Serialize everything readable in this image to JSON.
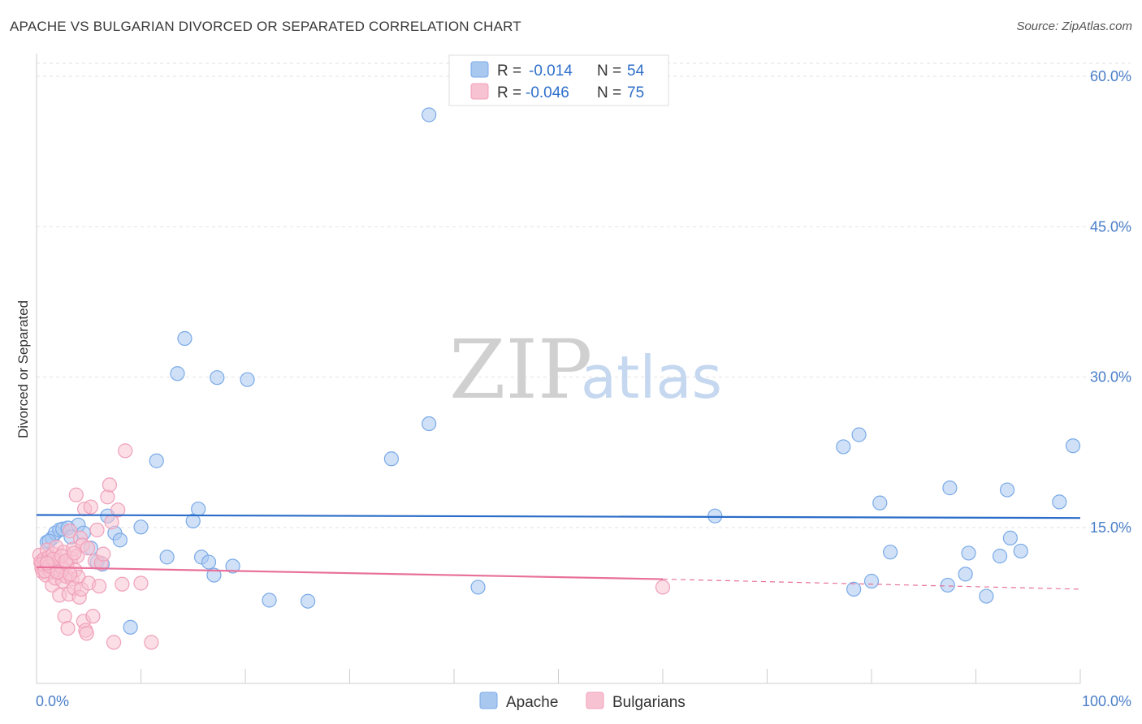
{
  "title": "APACHE VS BULGARIAN DIVORCED OR SEPARATED CORRELATION CHART",
  "source": "Source: ZipAtlas.com",
  "watermark": {
    "zip": "ZIP",
    "atlas": "atlas"
  },
  "chart_data": {
    "type": "scatter",
    "xlabel": "",
    "ylabel": "Divorced or Separated",
    "xlim": [
      0,
      100
    ],
    "ylim": [
      0,
      60
    ],
    "x_tick_labels": [
      {
        "value": 0,
        "label": "0.0%"
      },
      {
        "value": 100,
        "label": "100.0%"
      }
    ],
    "y_tick_labels": [
      {
        "value": 15,
        "label": "15.0%"
      },
      {
        "value": 30,
        "label": "30.0%"
      },
      {
        "value": 45,
        "label": "45.0%"
      },
      {
        "value": 60,
        "label": "60.0%"
      }
    ],
    "legend": {
      "r_label": "R =",
      "n_label": "N =",
      "entries": [
        {
          "series": "Apache",
          "r": "-0.014",
          "n": "54"
        },
        {
          "series": "Bulgarians",
          "r": "-0.046",
          "n": "75"
        }
      ]
    },
    "series": [
      {
        "name": "Apache",
        "color": "#7aaae8",
        "fill": "#a9c8f0",
        "line_color": "#2a6cc8",
        "trend": {
          "x0": 0,
          "y0": 16.5,
          "x1": 100,
          "y1": 16.2
        },
        "points": [
          [
            1,
            13.8
          ],
          [
            1.5,
            14.2
          ],
          [
            1.8,
            14.7
          ],
          [
            2.2,
            15
          ],
          [
            2.5,
            15.1
          ],
          [
            3,
            15.2
          ],
          [
            3.3,
            14.3
          ],
          [
            4,
            15.5
          ],
          [
            4.5,
            14.7
          ],
          [
            5.2,
            13.2
          ],
          [
            5.8,
            11.8
          ],
          [
            6.3,
            11.6
          ],
          [
            6.8,
            16.4
          ],
          [
            7.5,
            14.7
          ],
          [
            8,
            14
          ],
          [
            9,
            5.3
          ],
          [
            10,
            15.3
          ],
          [
            11.5,
            21.9
          ],
          [
            12.5,
            12.3
          ],
          [
            13.5,
            30.6
          ],
          [
            14.2,
            34.1
          ],
          [
            15,
            15.9
          ],
          [
            15.5,
            17.1
          ],
          [
            15.8,
            12.3
          ],
          [
            16.5,
            11.8
          ],
          [
            17,
            10.5
          ],
          [
            17.3,
            30.2
          ],
          [
            18.8,
            11.4
          ],
          [
            20.2,
            30
          ],
          [
            22.3,
            8
          ],
          [
            26,
            7.9
          ],
          [
            34,
            22.1
          ],
          [
            37.6,
            56.4
          ],
          [
            37.6,
            25.6
          ],
          [
            42.3,
            9.3
          ],
          [
            65,
            16.4
          ],
          [
            77.3,
            23.3
          ],
          [
            78.3,
            9.1
          ],
          [
            78.8,
            24.5
          ],
          [
            80,
            9.9
          ],
          [
            80.8,
            17.7
          ],
          [
            81.8,
            12.8
          ],
          [
            87.3,
            9.5
          ],
          [
            87.5,
            19.2
          ],
          [
            89,
            10.6
          ],
          [
            89.3,
            12.7
          ],
          [
            91,
            8.4
          ],
          [
            92.3,
            12.4
          ],
          [
            93,
            19
          ],
          [
            93.3,
            14.2
          ],
          [
            94.3,
            12.9
          ],
          [
            98,
            17.8
          ],
          [
            99.3,
            23.4
          ],
          [
            1.2,
            13.9
          ]
        ]
      },
      {
        "name": "Bulgarians",
        "color": "#f0a0ba",
        "fill": "#f7c2d2",
        "line_color": "#e8709a",
        "trend": {
          "x0": 0,
          "y0": 11.3,
          "x1": 60,
          "y1": 10.1
        },
        "trend_dashed": {
          "x0": 60,
          "y0": 10.1,
          "x1": 100,
          "y1": 9.1
        },
        "points": [
          [
            0.3,
            12.5
          ],
          [
            0.4,
            11.8
          ],
          [
            0.5,
            11.2
          ],
          [
            0.6,
            10.8
          ],
          [
            0.7,
            12.1
          ],
          [
            0.8,
            11.5
          ],
          [
            0.9,
            10.5
          ],
          [
            1,
            13
          ],
          [
            1.1,
            11.9
          ],
          [
            1.2,
            12.3
          ],
          [
            1.3,
            10.9
          ],
          [
            1.4,
            11.4
          ],
          [
            1.5,
            9.5
          ],
          [
            1.6,
            12.6
          ],
          [
            1.7,
            11.1
          ],
          [
            1.8,
            10.2
          ],
          [
            1.9,
            13.3
          ],
          [
            2,
            11.7
          ],
          [
            2.1,
            12
          ],
          [
            2.2,
            8.5
          ],
          [
            2.3,
            10.7
          ],
          [
            2.4,
            11.3
          ],
          [
            2.5,
            9.9
          ],
          [
            2.6,
            12.8
          ],
          [
            2.7,
            6.4
          ],
          [
            2.8,
            10.4
          ],
          [
            2.9,
            11.6
          ],
          [
            3,
            5.2
          ],
          [
            3.1,
            8.6
          ],
          [
            3.2,
            14.9
          ],
          [
            3.3,
            12.2
          ],
          [
            3.4,
            10.1
          ],
          [
            3.5,
            13.1
          ],
          [
            3.6,
            9.2
          ],
          [
            3.7,
            11
          ],
          [
            3.8,
            18.5
          ],
          [
            3.9,
            12.4
          ],
          [
            4,
            10.3
          ],
          [
            4.1,
            8.3
          ],
          [
            4.2,
            14.2
          ],
          [
            4.3,
            9.1
          ],
          [
            4.4,
            13.5
          ],
          [
            4.5,
            5.9
          ],
          [
            4.6,
            17.1
          ],
          [
            4.7,
            5
          ],
          [
            4.8,
            4.7
          ],
          [
            4.9,
            13.2
          ],
          [
            5,
            9.7
          ],
          [
            5.2,
            17.3
          ],
          [
            5.4,
            6.4
          ],
          [
            5.6,
            11.9
          ],
          [
            5.8,
            15
          ],
          [
            6,
            9.4
          ],
          [
            6.2,
            11.7
          ],
          [
            6.4,
            12.6
          ],
          [
            6.8,
            18.3
          ],
          [
            7,
            19.5
          ],
          [
            7.2,
            15.8
          ],
          [
            7.4,
            3.8
          ],
          [
            7.8,
            17
          ],
          [
            8.5,
            22.9
          ],
          [
            8.2,
            9.6
          ],
          [
            10,
            9.7
          ],
          [
            11,
            3.8
          ],
          [
            60,
            9.3
          ],
          [
            0.5,
            11.6
          ],
          [
            0.8,
            10.9
          ],
          [
            1.2,
            11.4
          ],
          [
            1.6,
            12.1
          ],
          [
            2,
            10.8
          ],
          [
            2.4,
            12.4
          ],
          [
            2.8,
            11.9
          ],
          [
            3.2,
            10.6
          ],
          [
            3.6,
            12.7
          ],
          [
            1,
            11.7
          ]
        ]
      }
    ]
  }
}
